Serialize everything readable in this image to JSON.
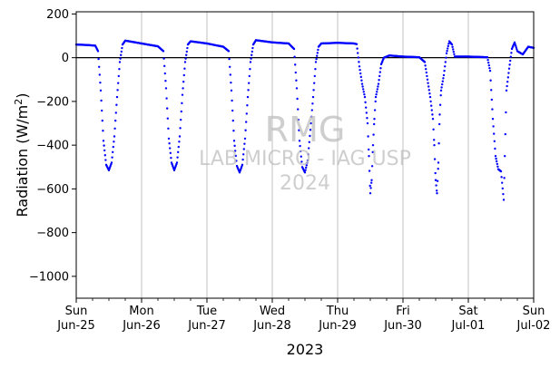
{
  "chart_data": {
    "type": "scatter",
    "xlabel": "2023",
    "ylabel": "Radiation (W/m²)",
    "ylim": [
      -1100,
      210
    ],
    "y_ticks": [
      200,
      0,
      -200,
      -400,
      -600,
      -800,
      -1000
    ],
    "x_range": [
      "2023-06-25",
      "2023-07-02"
    ],
    "x_ticks": [
      {
        "day": "Sun",
        "date": "Jun-25"
      },
      {
        "day": "Mon",
        "date": "Jun-26"
      },
      {
        "day": "Tue",
        "date": "Jun-27"
      },
      {
        "day": "Wed",
        "date": "Jun-28"
      },
      {
        "day": "Thu",
        "date": "Jun-29"
      },
      {
        "day": "Fri",
        "date": "Jun-30"
      },
      {
        "day": "Sat",
        "date": "Jul-01"
      },
      {
        "day": "Sun",
        "date": "Jul-02"
      }
    ],
    "grid": "vertical",
    "zero_line": true,
    "marker_color": "#0000ff",
    "watermark": [
      "RMG",
      "LAB MICRO - IAG USP",
      "2024"
    ],
    "series": [
      {
        "points": [
          [
            "2023-06-25 00:00",
            60
          ],
          [
            "2023-06-25 04:00",
            58
          ],
          [
            "2023-06-25 07:00",
            55
          ],
          [
            "2023-06-25 08:00",
            30
          ],
          [
            "2023-06-25 09:00",
            -150
          ],
          [
            "2023-06-25 10:00",
            -380
          ],
          [
            "2023-06-25 11:00",
            -490
          ],
          [
            "2023-06-25 12:00",
            -515
          ],
          [
            "2023-06-25 13:00",
            -480
          ],
          [
            "2023-06-25 14:00",
            -360
          ],
          [
            "2023-06-25 15:00",
            -180
          ],
          [
            "2023-06-25 16:00",
            -20
          ],
          [
            "2023-06-25 17:00",
            60
          ],
          [
            "2023-06-25 18:00",
            78
          ],
          [
            "2023-06-26 00:00",
            65
          ],
          [
            "2023-06-26 06:00",
            52
          ],
          [
            "2023-06-26 08:00",
            30
          ],
          [
            "2023-06-26 09:00",
            -140
          ],
          [
            "2023-06-26 10:00",
            -370
          ],
          [
            "2023-06-26 11:00",
            -480
          ],
          [
            "2023-06-26 12:00",
            -515
          ],
          [
            "2023-06-26 13:00",
            -480
          ],
          [
            "2023-06-26 14:00",
            -360
          ],
          [
            "2023-06-26 15:00",
            -170
          ],
          [
            "2023-06-26 16:00",
            -20
          ],
          [
            "2023-06-26 17:00",
            60
          ],
          [
            "2023-06-26 18:00",
            75
          ],
          [
            "2023-06-27 00:00",
            65
          ],
          [
            "2023-06-27 06:00",
            50
          ],
          [
            "2023-06-27 08:00",
            30
          ],
          [
            "2023-06-27 09:00",
            -150
          ],
          [
            "2023-06-27 10:00",
            -380
          ],
          [
            "2023-06-27 11:00",
            -495
          ],
          [
            "2023-06-27 12:00",
            -525
          ],
          [
            "2023-06-27 13:00",
            -490
          ],
          [
            "2023-06-27 14:00",
            -370
          ],
          [
            "2023-06-27 15:00",
            -180
          ],
          [
            "2023-06-27 16:00",
            -20
          ],
          [
            "2023-06-27 17:00",
            60
          ],
          [
            "2023-06-27 18:00",
            80
          ],
          [
            "2023-06-28 00:00",
            70
          ],
          [
            "2023-06-28 06:00",
            65
          ],
          [
            "2023-06-28 08:00",
            40
          ],
          [
            "2023-06-28 09:00",
            -140
          ],
          [
            "2023-06-28 10:00",
            -380
          ],
          [
            "2023-06-28 11:00",
            -500
          ],
          [
            "2023-06-28 12:00",
            -525
          ],
          [
            "2023-06-28 13:00",
            -470
          ],
          [
            "2023-06-28 14:00",
            -330
          ],
          [
            "2023-06-28 15:00",
            -180
          ],
          [
            "2023-06-28 16:00",
            -20
          ],
          [
            "2023-06-28 17:00",
            50
          ],
          [
            "2023-06-28 18:00",
            65
          ],
          [
            "2023-06-29 00:00",
            68
          ],
          [
            "2023-06-29 06:00",
            65
          ],
          [
            "2023-06-29 07:00",
            62
          ],
          [
            "2023-06-29 08:00",
            -40
          ],
          [
            "2023-06-29 09:00",
            -120
          ],
          [
            "2023-06-29 10:00",
            -180
          ],
          [
            "2023-06-29 11:00",
            -300
          ],
          [
            "2023-06-29 11:30",
            -450
          ],
          [
            "2023-06-29 12:00",
            -620
          ],
          [
            "2023-06-29 12:30",
            -560
          ],
          [
            "2023-06-29 13:00",
            -400
          ],
          [
            "2023-06-29 13:30",
            -280
          ],
          [
            "2023-06-29 14:00",
            -180
          ],
          [
            "2023-06-29 15:00",
            -120
          ],
          [
            "2023-06-29 16:00",
            -30
          ],
          [
            "2023-06-29 17:00",
            0
          ],
          [
            "2023-06-29 19:00",
            10
          ],
          [
            "2023-06-30 00:00",
            5
          ],
          [
            "2023-06-30 06:00",
            2
          ],
          [
            "2023-06-30 08:00",
            -20
          ],
          [
            "2023-06-30 09:00",
            -100
          ],
          [
            "2023-06-30 10:00",
            -180
          ],
          [
            "2023-06-30 11:00",
            -280
          ],
          [
            "2023-06-30 11:30",
            -400
          ],
          [
            "2023-06-30 12:00",
            -560
          ],
          [
            "2023-06-30 12:30",
            -620
          ],
          [
            "2023-06-30 13:00",
            -480
          ],
          [
            "2023-06-30 13:30",
            -260
          ],
          [
            "2023-06-30 14:00",
            -150
          ],
          [
            "2023-06-30 15:00",
            -80
          ],
          [
            "2023-06-30 16:00",
            20
          ],
          [
            "2023-06-30 17:00",
            75
          ],
          [
            "2023-06-30 18:00",
            60
          ],
          [
            "2023-06-30 19:00",
            5
          ],
          [
            "2023-07-01 00:00",
            5
          ],
          [
            "2023-07-01 07:00",
            2
          ],
          [
            "2023-07-01 08:00",
            -60
          ],
          [
            "2023-07-01 09:00",
            -280
          ],
          [
            "2023-07-01 10:00",
            -450
          ],
          [
            "2023-07-01 11:00",
            -510
          ],
          [
            "2023-07-01 12:00",
            -520
          ],
          [
            "2023-07-01 13:00",
            -650
          ],
          [
            "2023-07-01 14:00",
            -150
          ],
          [
            "2023-07-01 15:00",
            -50
          ],
          [
            "2023-07-01 16:00",
            40
          ],
          [
            "2023-07-01 17:00",
            70
          ],
          [
            "2023-07-01 18:00",
            30
          ],
          [
            "2023-07-01 20:00",
            15
          ],
          [
            "2023-07-01 22:00",
            50
          ],
          [
            "2023-07-02 00:00",
            45
          ]
        ]
      }
    ]
  }
}
